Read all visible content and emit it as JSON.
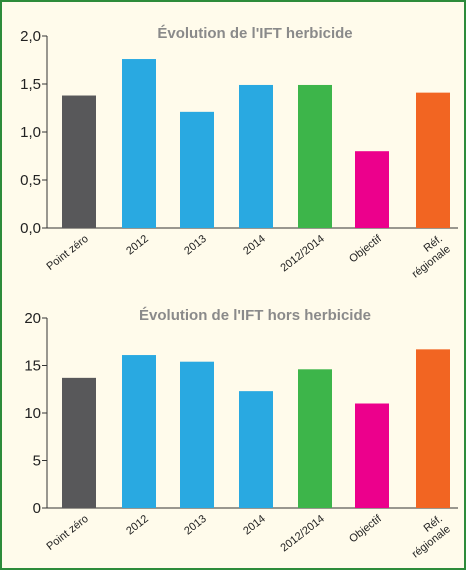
{
  "chart_data": [
    {
      "type": "bar",
      "title": "Évolution de l'IFT herbicide",
      "categories": [
        "Point zéro",
        "2012",
        "2013",
        "2014",
        "2012/2014",
        "Objectif",
        "Réf. régionale"
      ],
      "category_lines": [
        [
          "Point zéro"
        ],
        [
          "2012"
        ],
        [
          "2013"
        ],
        [
          "2014"
        ],
        [
          "2012/2014"
        ],
        [
          "Objectif"
        ],
        [
          "Réf.",
          "régionale"
        ]
      ],
      "values": [
        1.38,
        1.76,
        1.21,
        1.49,
        1.49,
        0.8,
        1.41
      ],
      "colors": [
        "#58585a",
        "#29a9e1",
        "#29a9e1",
        "#29a9e1",
        "#3db54a",
        "#ec008c",
        "#f26522"
      ],
      "yticks": [
        "0,0",
        "0,5",
        "1,0",
        "1,5",
        "2,0"
      ],
      "ylim": [
        0,
        2
      ],
      "xlabel": "",
      "ylabel": ""
    },
    {
      "type": "bar",
      "title": "Évolution de l'IFT hors herbicide",
      "categories": [
        "Point zéro",
        "2012",
        "2013",
        "2014",
        "2012/2014",
        "Objectif",
        "Réf. régionale"
      ],
      "category_lines": [
        [
          "Point zéro"
        ],
        [
          "2012"
        ],
        [
          "2013"
        ],
        [
          "2014"
        ],
        [
          "2012/2014"
        ],
        [
          "Objectif"
        ],
        [
          "Réf.",
          "régionale"
        ]
      ],
      "values": [
        13.7,
        16.1,
        15.4,
        12.3,
        14.6,
        11.0,
        16.7
      ],
      "colors": [
        "#58585a",
        "#29a9e1",
        "#29a9e1",
        "#29a9e1",
        "#3db54a",
        "#ec008c",
        "#f26522"
      ],
      "yticks": [
        "0",
        "5",
        "10",
        "15",
        "20"
      ],
      "ylim": [
        0,
        20
      ],
      "xlabel": "",
      "ylabel": ""
    }
  ]
}
